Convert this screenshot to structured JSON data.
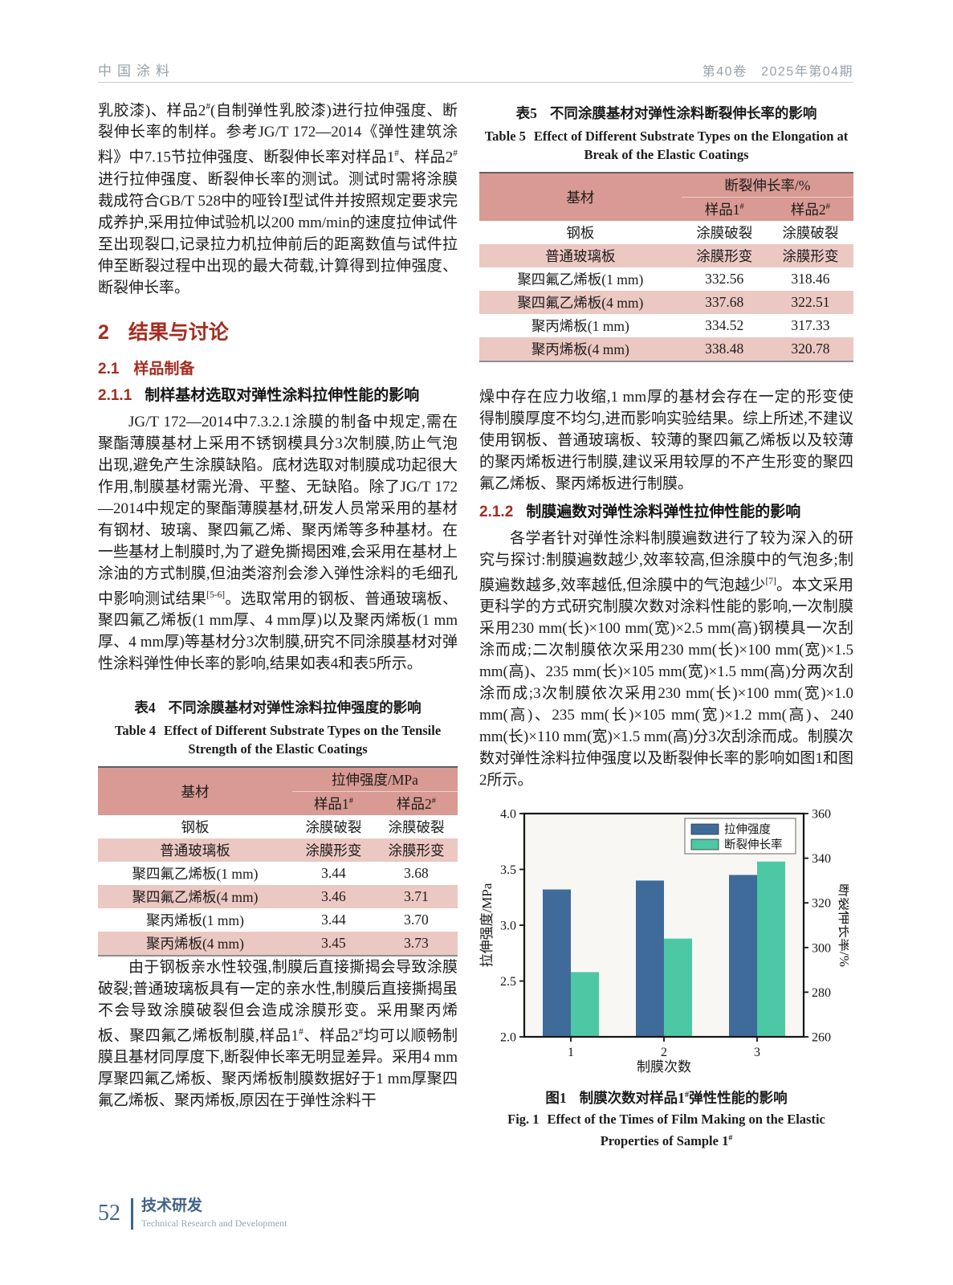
{
  "header": {
    "journal": "中国涂料",
    "volume": "第40卷",
    "issue": "2025年第04期"
  },
  "footer": {
    "page_number": "52",
    "section_cn": "技术研发",
    "section_en": "Technical Research and Development"
  },
  "left": {
    "para1": "乳胶漆)、样品2#(自制弹性乳胶漆)进行拉伸强度、断裂伸长率的制样。参考JG/T 172—2014《弹性建筑涂料》中7.15节拉伸强度、断裂伸长率对样品1#、样品2#进行拉伸强度、断裂伸长率的测试。测试时需将涂膜裁成符合GB/T 528中的哑铃Ⅰ型试件并按照规定要求完成养护,采用拉伸试验机以200 mm/min的速度拉伸试件至出现裂口,记录拉力机拉伸前后的距离数值与试件拉伸至断裂过程中出现的最大荷载,计算得到拉伸强度、断裂伸长率。",
    "h2": {
      "num": "2",
      "title": "结果与讨论"
    },
    "h21": {
      "num": "2.1",
      "title": "样品制备"
    },
    "h211": {
      "num": "2.1.1",
      "title": "制样基材选取对弹性涂料拉伸性能的影响"
    },
    "para2": "JG/T 172—2014中7.3.2.1涂膜的制备中规定,需在聚酯薄膜基材上采用不锈钢模具分3次制膜,防止气泡出现,避免产生涂膜缺陷。底材选取对制膜成功起很大作用,制膜基材需光滑、平整、无缺陷。除了JG/T 172—2014中规定的聚酯薄膜基材,研发人员常采用的基材有钢材、玻璃、聚四氟乙烯、聚丙烯等多种基材。在一些基材上制膜时,为了避免撕揭困难,会采用在基材上涂油的方式制膜,但油类溶剂会渗入弹性涂料的毛细孔中影响测试结果[5-6]。选取常用的钢板、普通玻璃板、聚四氟乙烯板(1 mm厚、4 mm厚)以及聚丙烯板(1 mm厚、4 mm厚)等基材分3次制膜,研究不同涂膜基材对弹性涂料弹性伸长率的影响,结果如表4和表5所示。",
    "para3": "由于钢板亲水性较强,制膜后直接撕揭会导致涂膜破裂;普通玻璃板具有一定的亲水性,制膜后直接撕揭虽不会导致涂膜破裂但会造成涂膜形变。采用聚丙烯板、聚四氟乙烯板制膜,样品1#、样品2#均可以顺畅制膜且基材同厚度下,断裂伸长率无明显差异。采用4 mm厚聚四氟乙烯板、聚丙烯板制膜数据好于1 mm厚聚四氟乙烯板、聚丙烯板,原因在于弹性涂料干"
  },
  "table4": {
    "label_cn": "表4",
    "title_cn": "不同涂膜基材对弹性涂料拉伸强度的影响",
    "label_en": "Table 4",
    "title_en": "Effect of Different Substrate Types on the Tensile Strength of the Elastic Coatings",
    "col_substrate": "基材",
    "col_group": "拉伸强度/MPa",
    "col_s1": "样品1",
    "col_s2": "样品2",
    "sup_mark": "#",
    "rows": [
      [
        "钢板",
        "涂膜破裂",
        "涂膜破裂"
      ],
      [
        "普通玻璃板",
        "涂膜形变",
        "涂膜形变"
      ],
      [
        "聚四氟乙烯板(1 mm)",
        "3.44",
        "3.68"
      ],
      [
        "聚四氟乙烯板(4 mm)",
        "3.46",
        "3.71"
      ],
      [
        "聚丙烯板(1 mm)",
        "3.44",
        "3.70"
      ],
      [
        "聚丙烯板(4 mm)",
        "3.45",
        "3.73"
      ]
    ]
  },
  "table5": {
    "label_cn": "表5",
    "title_cn": "不同涂膜基材对弹性涂料断裂伸长率的影响",
    "label_en": "Table 5",
    "title_en": "Effect of Different Substrate Types on the Elongation at Break of the Elastic Coatings",
    "col_substrate": "基材",
    "col_group": "断裂伸长率/%",
    "col_s1": "样品1",
    "col_s2": "样品2",
    "sup_mark": "#",
    "rows": [
      [
        "钢板",
        "涂膜破裂",
        "涂膜破裂"
      ],
      [
        "普通玻璃板",
        "涂膜形变",
        "涂膜形变"
      ],
      [
        "聚四氟乙烯板(1 mm)",
        "332.56",
        "318.46"
      ],
      [
        "聚四氟乙烯板(4 mm)",
        "337.68",
        "322.51"
      ],
      [
        "聚丙烯板(1 mm)",
        "334.52",
        "317.33"
      ],
      [
        "聚丙烯板(4 mm)",
        "338.48",
        "320.78"
      ]
    ]
  },
  "right": {
    "para1": "燥中存在应力收缩,1 mm厚的基材会存在一定的形变使得制膜厚度不均匀,进而影响实验结果。综上所述,不建议使用钢板、普通玻璃板、较薄的聚四氟乙烯板以及较薄的聚丙烯板进行制膜,建议采用较厚的不产生形变的聚四氟乙烯板、聚丙烯板进行制膜。",
    "h212": {
      "num": "2.1.2",
      "title": "制膜遍数对弹性涂料弹性拉伸性能的影响"
    },
    "para2": "各学者针对弹性涂料制膜遍数进行了较为深入的研究与探讨:制膜遍数越少,效率较高,但涂膜中的气泡多;制膜遍数越多,效率越低,但涂膜中的气泡越少[7]。本文采用更科学的方式研究制膜次数对涂料性能的影响,一次制膜采用230 mm(长)×100 mm(宽)×2.5 mm(高)钢模具一次刮涂而成;二次制膜依次采用230 mm(长)×100 mm(宽)×1.5 mm(高)、235 mm(长)×105 mm(宽)×1.5 mm(高)分两次刮涂而成;3次制膜依次采用230 mm(长)×100 mm(宽)×1.0 mm(高)、235 mm(长)×105 mm(宽)×1.2 mm(高)、240 mm(长)×110 mm(宽)×1.5 mm(高)分3次刮涂而成。制膜次数对弹性涂料拉伸强度以及断裂伸长率的影响如图1和图2所示。",
    "fig_label_cn": "图1",
    "fig_caption_cn": "制膜次数对样品1#弹性性能的影响",
    "fig_label_en": "Fig. 1",
    "fig_caption_en": "Effect of the Times of Film Making on the Elastic Properties of Sample 1#"
  },
  "chart_data": {
    "type": "bar",
    "categories": [
      "1",
      "2",
      "3"
    ],
    "series": [
      {
        "name": "拉伸强度",
        "axis": "left",
        "color": "#3e6b99",
        "values": [
          3.32,
          3.4,
          3.45
        ]
      },
      {
        "name": "断裂伸长率",
        "axis": "right",
        "color": "#4cc8a4",
        "values": [
          289,
          304,
          338.5
        ]
      }
    ],
    "xlabel": "制膜次数",
    "ylabel_left": "拉伸强度/MPa",
    "ylabel_right": "断裂伸长率/%",
    "ylim_left": [
      2.0,
      4.0
    ],
    "yticks_left": [
      "2.0",
      "2.5",
      "3.0",
      "3.5",
      "4.0"
    ],
    "ylim_right": [
      260,
      360
    ],
    "yticks_right": [
      "260",
      "280",
      "300",
      "320",
      "340",
      "360"
    ],
    "legend_position": "top-right",
    "grid": false,
    "plot_bg": "#f8f7f4",
    "frame_color": "#141414"
  }
}
